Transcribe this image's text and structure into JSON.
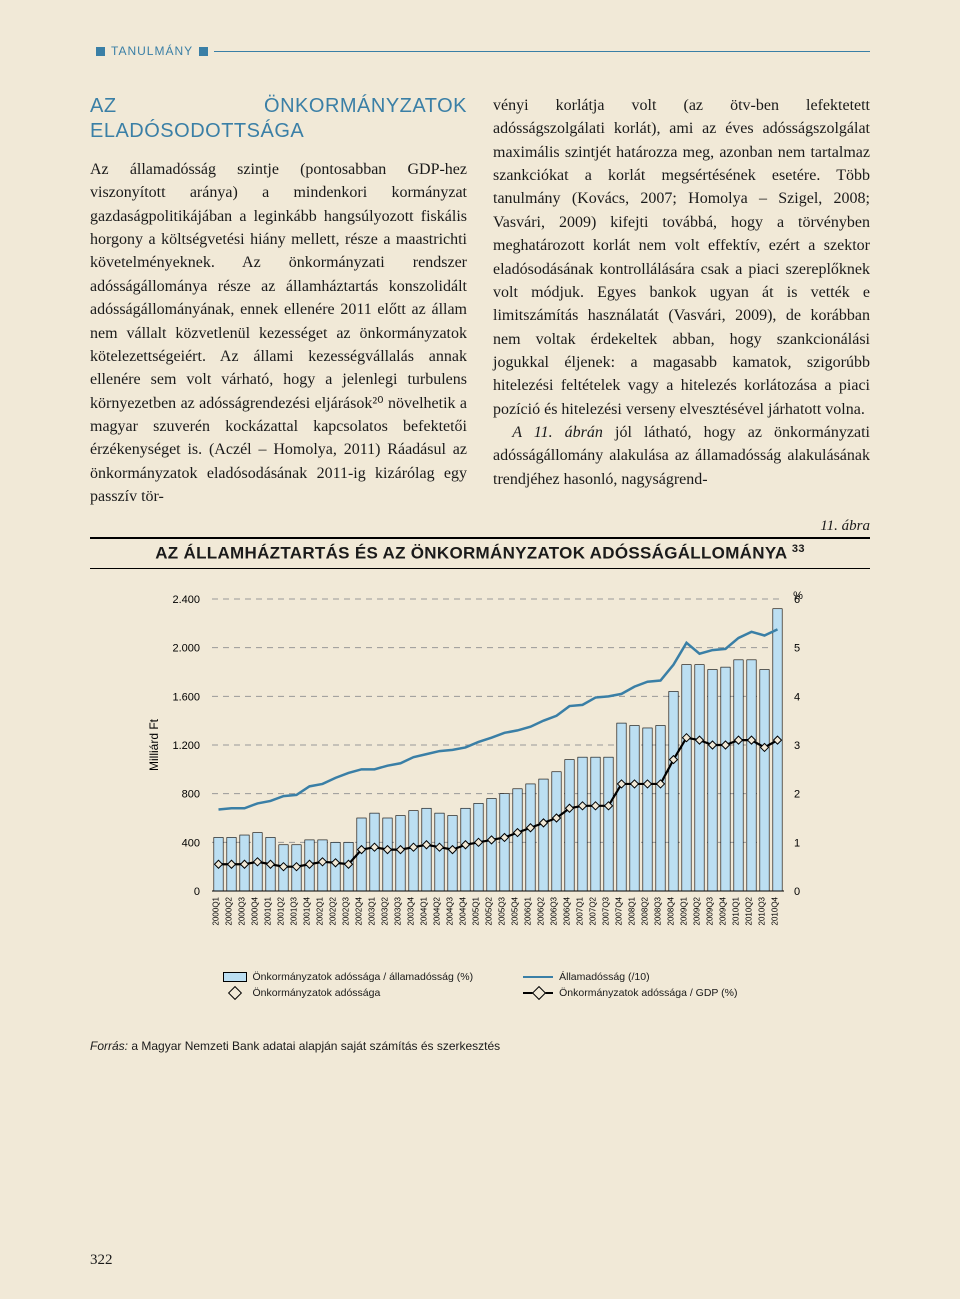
{
  "header": {
    "label": "TANULMÁNY"
  },
  "section_title": "AZ ÖNKORMÁNYZATOK ELADÓSODOTTSÁGA",
  "body": {
    "left": "Az államadósság szintje (pontosabban GDP-hez viszonyított aránya) a mindenkori kormányzat gazdaságpolitikájában a leginkább hangsúlyozott fiskális horgony a költségvetési hiány mellett, része a maastrichti követelményeknek. Az önkormányzati rendszer adósságállománya része az államháztartás konszolidált adósságállományának, ennek ellenére 2011 előtt az állam nem vállalt közvetlenül kezességet az önkormányzatok kötelezettségeiért. Az állami kezességvállalás annak ellenére sem volt várható, hogy a jelenlegi turbulens környezetben az adósságrendezési eljárások²⁰ növelhetik a magyar szuverén kockázattal kapcsolatos befektetői érzékenységet is. (Aczél – Homolya, 2011) Ráadásul az önkormányzatok eladósodásának 2011-ig kizárólag egy passzív tör-",
    "right_p1": "vényi korlátja volt (az ötv-ben lefektetett adósságszolgálati korlát), ami az éves adósságszolgálat maximális szintjét határozza meg, azonban nem tartalmaz szankciókat a korlát megsértésének esetére. Több tanulmány (Kovács, 2007; Homolya – Szigel, 2008; Vasvári, 2009) kifejti továbbá, hogy a törvényben meghatározott korlát nem volt effektív, ezért a szektor eladósodásának kontrollálására csak a piaci szereplőknek volt módjuk. Egyes bankok ugyan át is vették e limitszámítás használatát (Vasvári, 2009), de korábban nem voltak érdekeltek abban, hogy szankcionálási jogukkal éljenek: a magasabb kamatok, szigorúbb hitelezési feltételek vagy a hitelezés korlátozása a piaci pozíció és hitelezési verseny elvesztésével járhatott volna.",
    "right_p2": "A 11. ábrán jól látható, hogy az önkormányzati adósságállomány alakulása az államadósság alakulásának trendjéhez hasonló, nagyságrend-"
  },
  "figure": {
    "caption": "11. ábra",
    "title": "AZ ÁLLAMHÁZTARTÁS ÉS AZ ÖNKORMÁNYZATOK ADÓSSÁGÁLLOMÁNYA ",
    "title_sup": "33",
    "ylabel_left": "Milliárd Ft",
    "ylabel_right": "%",
    "y_left_ticks": [
      0,
      400,
      800,
      1200,
      1600,
      2000,
      2400
    ],
    "y_left_labels": [
      "0",
      "400",
      "800",
      "1.200",
      "1.600",
      "2.000",
      "2.400"
    ],
    "y_left_max": 2400,
    "y_right_ticks": [
      0,
      1,
      2,
      3,
      4,
      5,
      6
    ],
    "y_right_max": 6,
    "x_labels": [
      "2000Q1",
      "2000Q2",
      "2000Q3",
      "2000Q4",
      "2001Q1",
      "2001Q2",
      "2001Q3",
      "2001Q4",
      "2002Q1",
      "2002Q2",
      "2002Q3",
      "2002Q4",
      "2003Q1",
      "2003Q2",
      "2003Q3",
      "2003Q4",
      "2004Q1",
      "2004Q2",
      "2004Q3",
      "2004Q4",
      "2005Q1",
      "2005Q2",
      "2005Q3",
      "2005Q4",
      "2006Q1",
      "2006Q2",
      "2006Q3",
      "2006Q4",
      "2007Q1",
      "2007Q2",
      "2007Q3",
      "2007Q4",
      "2008Q1",
      "2008Q2",
      "2008Q3",
      "2008Q4",
      "2009Q1",
      "2009Q2",
      "2009Q3",
      "2009Q4",
      "2010Q1",
      "2010Q2",
      "2010Q3",
      "2010Q4"
    ],
    "bars_pct": [
      1.1,
      1.1,
      1.15,
      1.2,
      1.1,
      0.95,
      0.95,
      1.05,
      1.05,
      1.0,
      1.0,
      1.5,
      1.6,
      1.5,
      1.55,
      1.65,
      1.7,
      1.6,
      1.55,
      1.7,
      1.8,
      1.9,
      2.0,
      2.1,
      2.2,
      2.3,
      2.45,
      2.7,
      2.75,
      2.75,
      2.75,
      3.45,
      3.4,
      3.35,
      3.4,
      4.1,
      4.65,
      4.65,
      4.55,
      4.6,
      4.75,
      4.75,
      4.55,
      5.8
    ],
    "line_blue": [
      670,
      680,
      680,
      720,
      740,
      780,
      790,
      860,
      880,
      930,
      970,
      1000,
      1000,
      1030,
      1050,
      1100,
      1125,
      1150,
      1160,
      1180,
      1225,
      1260,
      1300,
      1320,
      1350,
      1400,
      1440,
      1520,
      1530,
      1590,
      1600,
      1620,
      1680,
      1720,
      1730,
      1860,
      2040,
      1950,
      1980,
      1990,
      2080,
      2130,
      2100,
      2150
    ],
    "line_black_gdp": [
      0.55,
      0.55,
      0.55,
      0.6,
      0.55,
      0.5,
      0.5,
      0.55,
      0.6,
      0.58,
      0.55,
      0.85,
      0.9,
      0.85,
      0.85,
      0.9,
      0.95,
      0.9,
      0.85,
      0.95,
      1.0,
      1.05,
      1.1,
      1.2,
      1.3,
      1.4,
      1.5,
      1.7,
      1.75,
      1.75,
      1.75,
      2.2,
      2.2,
      2.2,
      2.2,
      2.7,
      3.15,
      3.1,
      3.0,
      3.0,
      3.1,
      3.1,
      2.95,
      3.1
    ],
    "colors": {
      "bar_fill": "#bcdff2",
      "bar_stroke": "#000000",
      "line_blue": "#3a7fa6",
      "line_black": "#000000",
      "grid": "#999999",
      "bg": "#f1e9d7"
    },
    "legend": {
      "bar": "Önkormányzatok adóssága / államadósság (%)",
      "diamond": "Önkormányzatok adóssága",
      "blue_line": "Államadósság (/10)",
      "black_line": "Önkormányzatok adóssága / GDP (%)"
    }
  },
  "source": {
    "label": "Forrás:",
    "text": " a Magyar Nemzeti Bank adatai alapján saját számítás és szerkesztés"
  },
  "page_number": "322"
}
